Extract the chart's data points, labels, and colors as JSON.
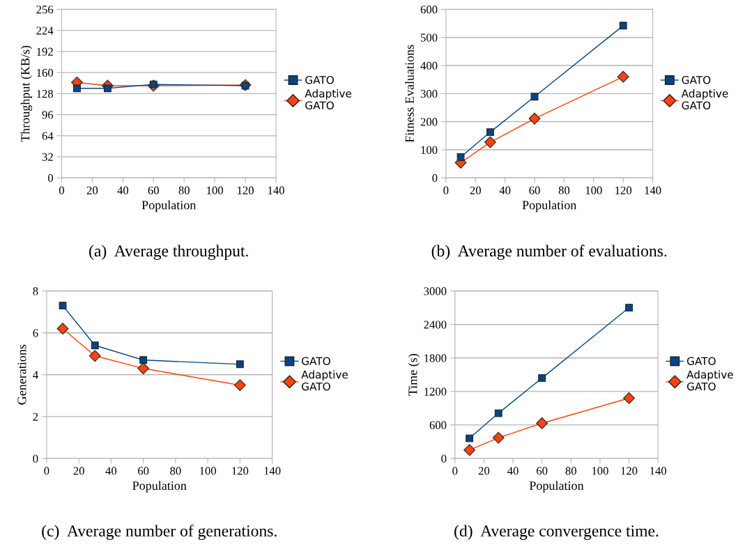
{
  "chart_data": [
    {
      "type": "line",
      "title": "(a)  Average throughput.",
      "xlabel": "Population",
      "ylabel": "Throughput (KB/s)",
      "x": [
        10,
        30,
        60,
        120
      ],
      "xlim": [
        0,
        140
      ],
      "xticks": [
        0,
        20,
        40,
        60,
        80,
        100,
        120,
        140
      ],
      "ylim": [
        0,
        256
      ],
      "yticks": [
        0,
        32,
        64,
        96,
        128,
        160,
        192,
        224,
        256
      ],
      "grid": "y",
      "legend": "right",
      "series": [
        {
          "name": "GATO",
          "color": "#004586",
          "marker": "square",
          "values": [
            136,
            136,
            142,
            140
          ]
        },
        {
          "name": "Adaptive GATO",
          "color": "#ff420e",
          "marker": "diamond",
          "values": [
            145,
            140,
            140,
            141
          ]
        }
      ]
    },
    {
      "type": "line",
      "title": "(b)  Average number of evaluations.",
      "xlabel": "Population",
      "ylabel": "Fitness Evaluations",
      "x": [
        10,
        30,
        60,
        120
      ],
      "xlim": [
        0,
        140
      ],
      "xticks": [
        0,
        20,
        40,
        60,
        80,
        100,
        120,
        140
      ],
      "ylim": [
        0,
        600
      ],
      "yticks": [
        0,
        100,
        200,
        300,
        400,
        500,
        600
      ],
      "grid": "y",
      "legend": "right",
      "series": [
        {
          "name": "GATO",
          "color": "#004586",
          "marker": "square",
          "values": [
            74,
            163,
            289,
            542
          ]
        },
        {
          "name": "Adaptive GATO",
          "color": "#ff420e",
          "marker": "diamond",
          "values": [
            54,
            127,
            211,
            360
          ]
        }
      ]
    },
    {
      "type": "line",
      "title": "(c)  Average number of generations.",
      "xlabel": "Population",
      "ylabel": "Generations",
      "x": [
        10,
        30,
        60,
        120
      ],
      "xlim": [
        0,
        140
      ],
      "xticks": [
        0,
        20,
        40,
        60,
        80,
        100,
        120,
        140
      ],
      "ylim": [
        0,
        8
      ],
      "yticks": [
        0,
        2,
        4,
        6,
        8
      ],
      "grid": "y",
      "legend": "right",
      "series": [
        {
          "name": "GATO",
          "color": "#004586",
          "marker": "square",
          "values": [
            7.3,
            5.4,
            4.7,
            4.5
          ]
        },
        {
          "name": "Adaptive GATO",
          "color": "#ff420e",
          "marker": "diamond",
          "values": [
            6.2,
            4.9,
            4.3,
            3.5
          ]
        }
      ]
    },
    {
      "type": "line",
      "title": "(d)  Average convergence time.",
      "xlabel": "Population",
      "ylabel": "Time (s)",
      "x": [
        10,
        30,
        60,
        120
      ],
      "xlim": [
        0,
        140
      ],
      "xticks": [
        0,
        20,
        40,
        60,
        80,
        100,
        120,
        140
      ],
      "ylim": [
        0,
        3000
      ],
      "yticks": [
        0,
        600,
        1200,
        1800,
        2400,
        3000
      ],
      "grid": "y",
      "legend": "right",
      "series": [
        {
          "name": "GATO",
          "color": "#004586",
          "marker": "square",
          "values": [
            360,
            810,
            1440,
            2700
          ]
        },
        {
          "name": "Adaptive GATO",
          "color": "#ff420e",
          "marker": "diamond",
          "values": [
            150,
            370,
            630,
            1080
          ]
        }
      ]
    }
  ]
}
